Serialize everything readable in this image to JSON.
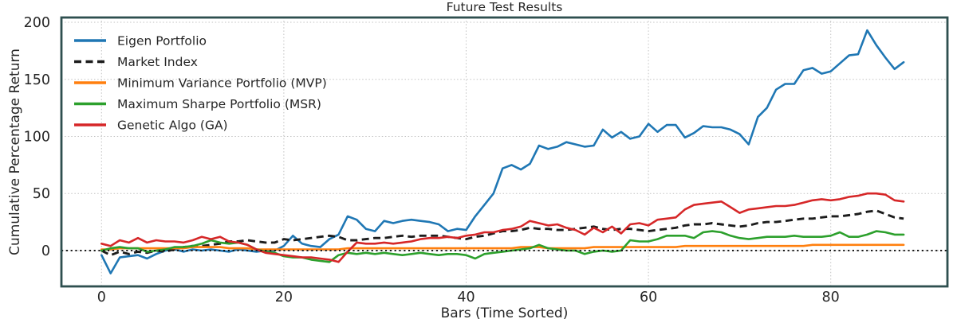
{
  "chart_data": {
    "type": "line",
    "title": "Future Test Results",
    "xlabel": "Bars (Time Sorted)",
    "ylabel": "Cumulative Percentage Return",
    "xlim": [
      -4.4,
      92.8
    ],
    "ylim": [
      -31.4,
      204.2
    ],
    "xticks": [
      0,
      20,
      40,
      60,
      80
    ],
    "yticks": [
      0,
      50,
      100,
      150,
      200
    ],
    "grid": "dotted",
    "zero_line": true,
    "legend_position": "upper left",
    "x": [
      0,
      1,
      2,
      3,
      4,
      5,
      6,
      7,
      8,
      9,
      10,
      11,
      12,
      13,
      14,
      15,
      16,
      17,
      18,
      19,
      20,
      21,
      22,
      23,
      24,
      25,
      26,
      27,
      28,
      29,
      30,
      31,
      32,
      33,
      34,
      35,
      36,
      37,
      38,
      39,
      40,
      41,
      42,
      43,
      44,
      45,
      46,
      47,
      48,
      49,
      50,
      51,
      52,
      53,
      54,
      55,
      56,
      57,
      58,
      59,
      60,
      61,
      62,
      63,
      64,
      65,
      66,
      67,
      68,
      69,
      70,
      71,
      72,
      73,
      74,
      75,
      76,
      77,
      78,
      79,
      80,
      81,
      82,
      83,
      84,
      85,
      86,
      87,
      88
    ],
    "series": [
      {
        "name": "Eigen Portfolio",
        "color": "#1f77b4",
        "dash": "solid",
        "values": [
          -4,
          -20,
          -6,
          -5,
          -4,
          -7,
          -3,
          0,
          1,
          -1,
          1,
          0,
          1,
          0,
          -1,
          1,
          0,
          -1,
          0,
          0,
          4,
          13,
          6,
          4,
          3,
          10,
          14,
          30,
          27,
          19,
          17,
          26,
          24,
          26,
          27,
          26,
          25,
          23,
          17,
          19,
          18,
          30,
          40,
          50,
          72,
          75,
          71,
          76,
          92,
          89,
          91,
          95,
          93,
          91,
          92,
          106,
          99,
          104,
          98,
          100,
          111,
          104,
          110,
          110,
          99,
          103,
          109,
          108,
          108,
          106,
          102,
          93,
          117,
          125,
          141,
          146,
          146,
          158,
          160,
          155,
          157,
          164,
          171,
          172,
          193,
          180,
          169,
          159,
          165
        ]
      },
      {
        "name": "Market Index",
        "color": "#1c1c1c",
        "dash": "dashed",
        "values": [
          0,
          -4,
          -1,
          -3,
          -1,
          -2,
          0,
          -1,
          1,
          3,
          4,
          4,
          5,
          6,
          8,
          8,
          9,
          8,
          7,
          7,
          10,
          9,
          10,
          11,
          12,
          13,
          12,
          9,
          9,
          10,
          11,
          11,
          12,
          13,
          12,
          13,
          13,
          13,
          12,
          11,
          10,
          12,
          13,
          15,
          17,
          17,
          18,
          20,
          19,
          19,
          18,
          18,
          19,
          20,
          21,
          19,
          18,
          19,
          19,
          18,
          17,
          18,
          19,
          20,
          22,
          23,
          23,
          24,
          23,
          22,
          21,
          22,
          24,
          25,
          25,
          26,
          27,
          28,
          28,
          29,
          30,
          30,
          31,
          32,
          34,
          35,
          32,
          29,
          28
        ]
      },
      {
        "name": "Minimum Variance Portfolio (MVP)",
        "color": "#ff7f0e",
        "dash": "solid",
        "values": [
          1,
          1,
          2,
          2,
          2,
          2,
          2,
          2,
          2,
          2,
          3,
          3,
          3,
          3,
          2,
          2,
          2,
          1,
          1,
          1,
          1,
          1,
          1,
          1,
          1,
          1,
          1,
          2,
          2,
          2,
          2,
          2,
          2,
          2,
          2,
          2,
          2,
          2,
          2,
          2,
          2,
          2,
          2,
          2,
          2,
          2,
          3,
          3,
          3,
          2,
          2,
          2,
          2,
          2,
          3,
          3,
          3,
          3,
          3,
          3,
          3,
          3,
          3,
          3,
          4,
          4,
          4,
          4,
          4,
          4,
          4,
          4,
          4,
          4,
          4,
          4,
          4,
          4,
          5,
          5,
          5,
          5,
          5,
          5,
          5,
          5,
          5,
          5,
          5
        ]
      },
      {
        "name": "Maximum Sharpe Portfolio (MSR)",
        "color": "#2ca02c",
        "dash": "solid",
        "values": [
          0,
          2,
          3,
          2,
          2,
          -1,
          0,
          1,
          3,
          3,
          4,
          6,
          9,
          7,
          6,
          7,
          5,
          1,
          -1,
          -2,
          -5,
          -6,
          -6,
          -8,
          -9,
          -10,
          -4,
          -2,
          -3,
          -2,
          -3,
          -2,
          -3,
          -4,
          -3,
          -2,
          -3,
          -4,
          -3,
          -3,
          -4,
          -7,
          -3,
          -2,
          -1,
          0,
          1,
          2,
          5,
          2,
          1,
          0,
          0,
          -3,
          -1,
          0,
          -1,
          0,
          9,
          8,
          8,
          10,
          13,
          13,
          13,
          11,
          16,
          17,
          16,
          13,
          11,
          10,
          11,
          12,
          12,
          12,
          13,
          12,
          12,
          12,
          13,
          16,
          12,
          12,
          14,
          17,
          16,
          14,
          14
        ]
      },
      {
        "name": "Genetic Algo (GA)",
        "color": "#d62728",
        "dash": "solid",
        "values": [
          6,
          4,
          9,
          7,
          11,
          7,
          9,
          8,
          8,
          7,
          9,
          12,
          10,
          12,
          8,
          7,
          5,
          1,
          -2,
          -3,
          -4,
          -5,
          -6,
          -6,
          -7,
          -8,
          -10,
          -1,
          7,
          6,
          6,
          7,
          6,
          7,
          8,
          10,
          11,
          11,
          12,
          11,
          13,
          14,
          16,
          16,
          18,
          19,
          21,
          26,
          24,
          22,
          23,
          20,
          18,
          14,
          20,
          16,
          21,
          15,
          23,
          24,
          22,
          27,
          28,
          29,
          36,
          40,
          41,
          42,
          43,
          38,
          33,
          36,
          37,
          38,
          39,
          39,
          40,
          42,
          44,
          45,
          44,
          45,
          47,
          48,
          50,
          50,
          49,
          44,
          43
        ]
      }
    ],
    "colors": {
      "axes_border": "#2e4f4f",
      "grid": "#c2c2c2",
      "zero_line": "#111111",
      "text": "#262626",
      "background": "#ffffff"
    }
  }
}
